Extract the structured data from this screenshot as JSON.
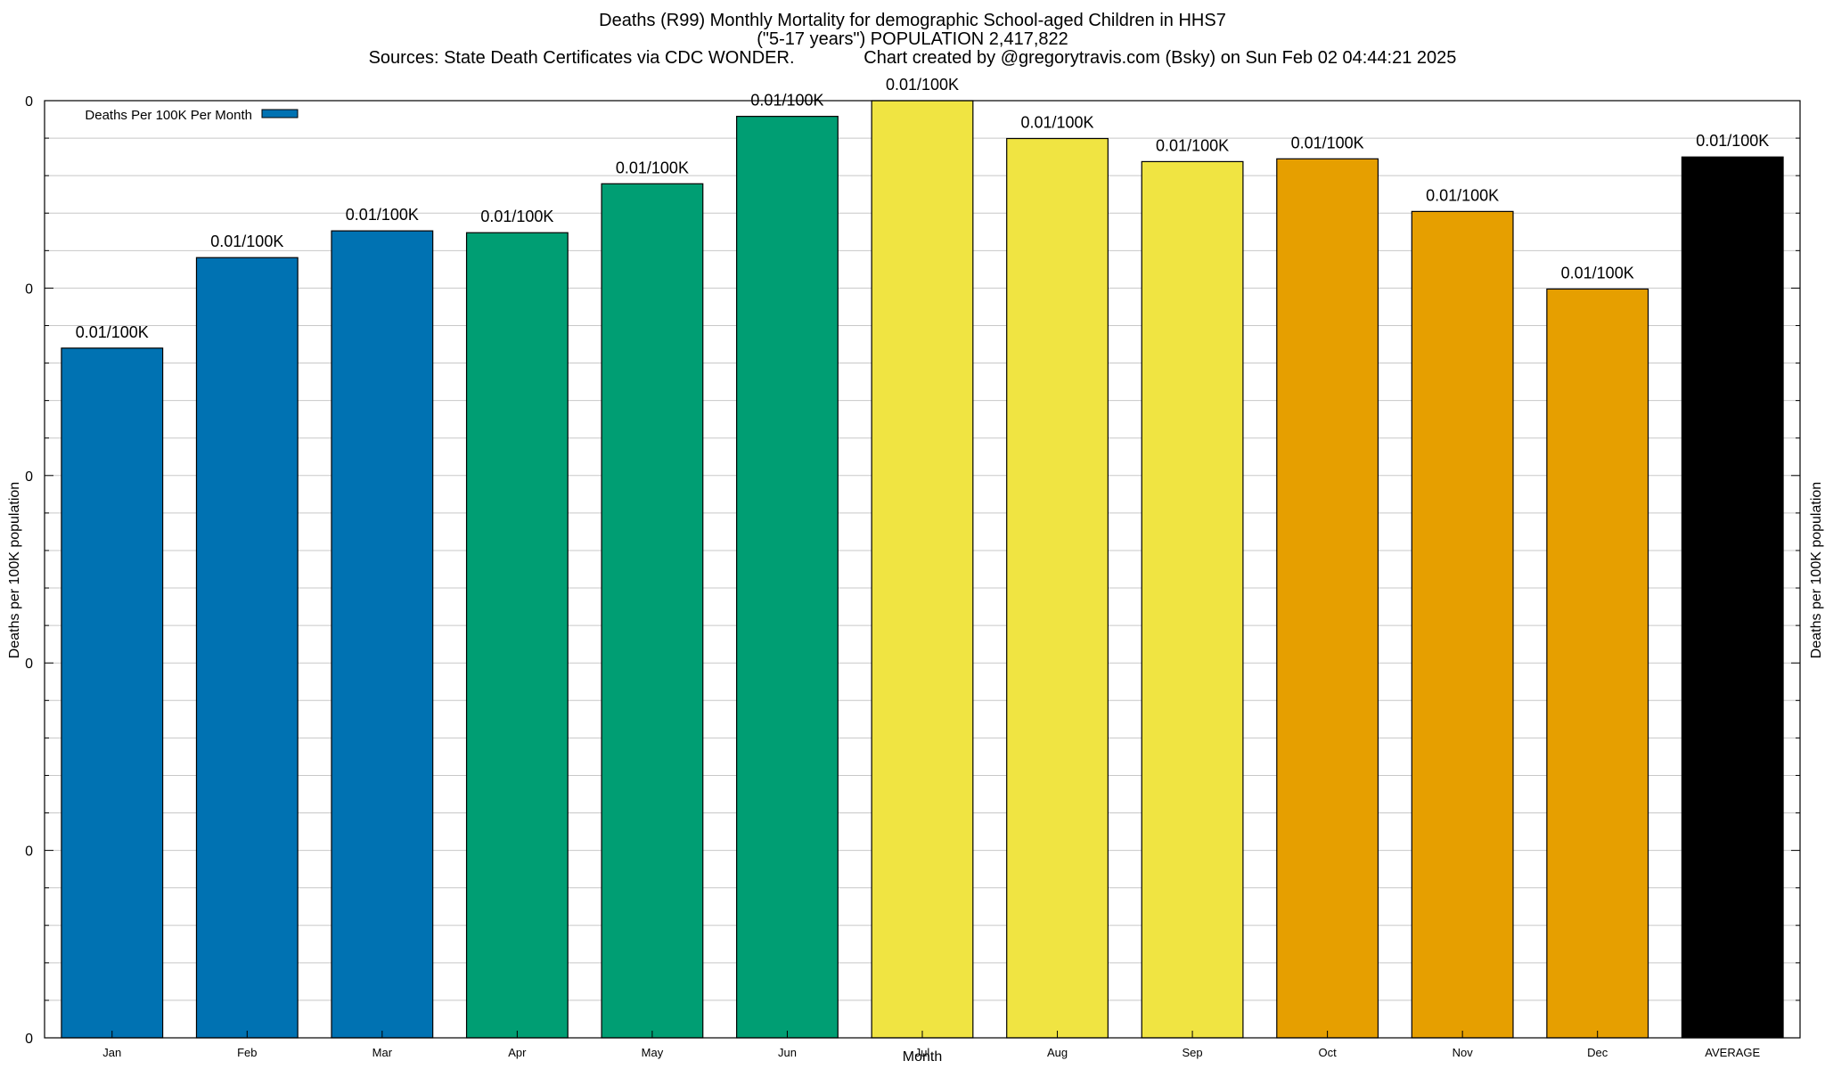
{
  "title": {
    "line1": "Deaths (R99) Monthly Mortality for demographic School-aged Children in HHS7",
    "line2": "(\"5-17 years\") POPULATION 2,417,822",
    "line3": "Sources: State Death Certificates via CDC WONDER.              Chart created by @gregorytravis.com (Bsky) on Sun Feb 02 04:44:21 2025"
  },
  "chart_data": {
    "type": "bar",
    "categories": [
      "Jan",
      "Feb",
      "Mar",
      "Apr",
      "May",
      "Jun",
      "Jul",
      "Aug",
      "Sep",
      "Oct",
      "Nov",
      "Dec",
      "AVERAGE"
    ],
    "values": [
      0.00747,
      0.00845,
      0.00874,
      0.00872,
      0.00925,
      0.00998,
      0.01015,
      0.00974,
      0.00949,
      0.00952,
      0.00895,
      0.00811,
      0.00954
    ],
    "data_labels": [
      "0.01/100K",
      "0.01/100K",
      "0.01/100K",
      "0.01/100K",
      "0.01/100K",
      "0.01/100K",
      "0.01/100K",
      "0.01/100K",
      "0.01/100K",
      "0.01/100K",
      "0.01/100K",
      "0.01/100K",
      "0.01/100K"
    ],
    "colors": [
      "#0072b2",
      "#0072b2",
      "#0072b2",
      "#009e73",
      "#009e73",
      "#009e73",
      "#f0e442",
      "#f0e442",
      "#f0e442",
      "#e69f00",
      "#e69f00",
      "#e69f00",
      "#000000"
    ],
    "xlabel": "Month",
    "ylabel": "Deaths per 100K population",
    "y2label": "Deaths per 100K population",
    "ytick_labels": [
      "0",
      "0",
      "0",
      "0",
      "0",
      "0"
    ],
    "ylim": [
      0,
      0.01015
    ],
    "legend": {
      "label": "Deaths Per 100K Per Month",
      "color": "#0072b2",
      "position": "top-left"
    },
    "grid": true
  }
}
